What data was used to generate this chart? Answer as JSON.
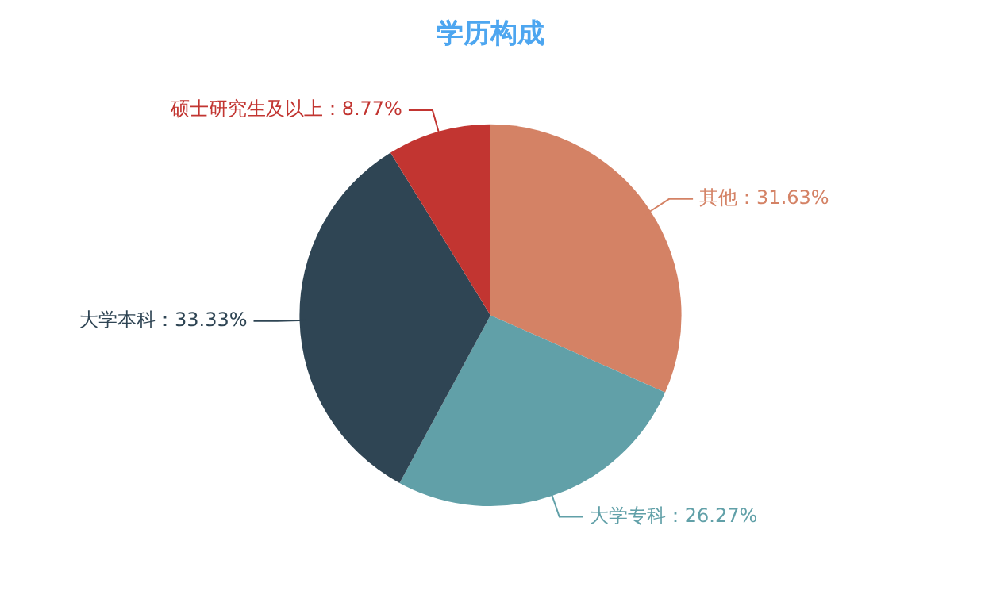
{
  "chart_data": {
    "type": "pie",
    "title": "学历构成",
    "categories": [
      "其他",
      "大学专科",
      "大学本科",
      "硕士研究生及以上"
    ],
    "values": [
      31.63,
      26.27,
      33.33,
      8.77
    ],
    "colors": [
      "#d48265",
      "#61a0a8",
      "#2f4554",
      "#c23531"
    ],
    "value_labels": [
      "：31.63%",
      "：26.27%",
      "：33.33%",
      "：8.77%"
    ],
    "legend": false
  }
}
